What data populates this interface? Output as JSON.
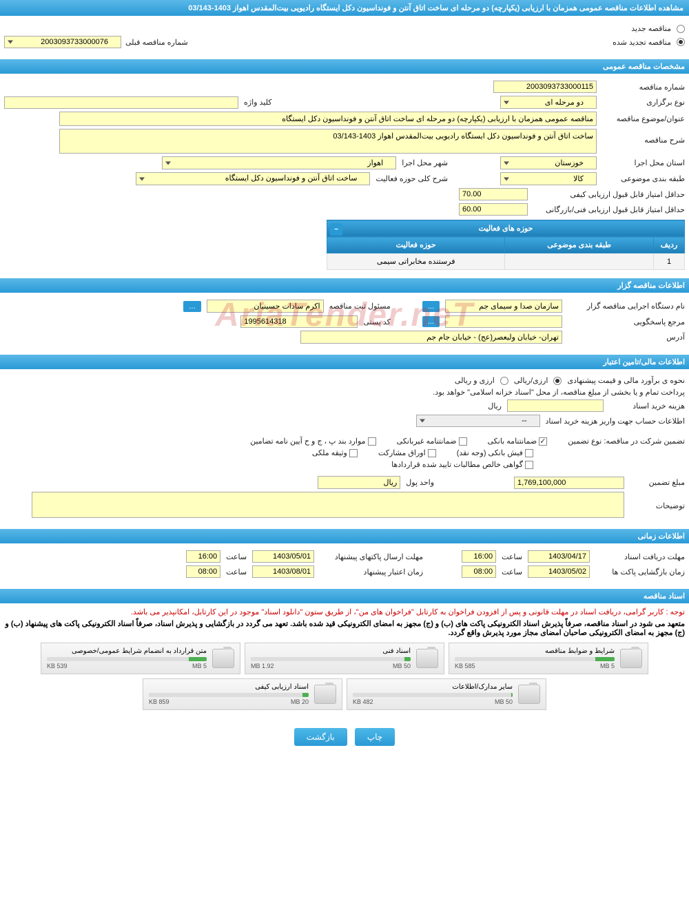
{
  "title": "مشاهده اطلاعات مناقصه عمومی همزمان با ارزیابی (یکپارچه) دو مرحله ای ساخت اتاق آنتن و فونداسیون دکل ایستگاه رادیویی بیت‌المقدس اهواز 1403-03/143",
  "tender_type": {
    "new_label": "مناقصه جدید",
    "renewed_label": "مناقصه تجدید شده",
    "selected": "renewed",
    "prev_number_label": "شماره مناقصه قبلی",
    "prev_number_value": "2003093733000076"
  },
  "sections": {
    "general": "مشخصات مناقصه عمومی",
    "organizer": "اطلاعات مناقصه گزار",
    "financial": "اطلاعات مالی/تامین اعتبار",
    "timing": "اطلاعات زمانی",
    "documents": "اسناد مناقصه"
  },
  "general": {
    "tender_number_label": "شماره مناقصه",
    "tender_number_value": "2003093733000115",
    "type_label": "نوع برگزاری",
    "type_value": "دو مرحله ای",
    "keyword_label": "کلید واژه",
    "keyword_value": "",
    "subject_label": "عنوان/موضوع مناقصه",
    "subject_value": "مناقصه عمومی همزمان با ارزیابی (یکپارچه) دو مرحله ای ساخت اتاق آنتن و فونداسیون دکل ایستگاه",
    "desc_label": "شرح مناقصه",
    "desc_value": "ساخت اتاق آنتن و فونداسیون دکل ایستگاه رادیویی بیت‌المقدس اهواز 1403-03/143",
    "province_label": "استان محل اجرا",
    "province_value": "خوزستان",
    "city_label": "شهر محل اجرا",
    "city_value": "اهواز",
    "category_label": "طبقه بندی موضوعی",
    "category_value": "کالا",
    "activity_scope_label": "شرح کلی حوزه فعالیت",
    "activity_scope_value": "ساخت اتاق آنتن و فونداسیون دکل ایستگاه",
    "min_quality_label": "حداقل امتیاز قابل قبول ارزیابی کیفی",
    "min_quality_value": "70.00",
    "min_tech_label": "حداقل امتیاز قابل قبول ارزیابی فنی/بازرگانی",
    "min_tech_value": "60.00",
    "activity_table_title": "حوزه های فعالیت",
    "activity_table_cols": [
      "ردیف",
      "طبقه بندی موضوعی",
      "حوزه فعالیت"
    ],
    "activity_table_row": [
      "1",
      "",
      "فرستنده مخابراتی سیمی"
    ]
  },
  "organizer": {
    "exec_name_label": "نام دستگاه اجرایی مناقصه گزار",
    "exec_name_value": "سازمان صدا و سیمای جم",
    "reg_official_label": "مسئول ثبت مناقصه",
    "reg_official_value": "اکرم سادات حسینیان",
    "response_ref_label": "مرجع پاسخگویی",
    "response_ref_value": "",
    "postal_label": "کد پستی",
    "postal_value": "1995614318",
    "address_label": "آدرس",
    "address_value": "تهران- خیابان ولیعصر(عج) - خیابان جام جم"
  },
  "financial": {
    "estimate_label": "نحوه ی برآورد مالی و قیمت پیشنهادی",
    "opt_rial": "ارزی/ریالی",
    "opt_foreign": "ارزی و ریالی",
    "treasury_note": "پرداخت تمام و یا بخشی از مبلغ مناقصه، از محل \"اسناد خزانه اسلامی\" خواهد بود.",
    "doc_cost_label": "هزینه خرید اسناد",
    "doc_cost_value": "",
    "doc_cost_unit": "ریال",
    "account_label": "اطلاعات حساب جهت واریز هزینه خرید اسناد",
    "account_value": "--",
    "guarantee_intro": "تضمین شرکت در مناقصه: نوع تضمین",
    "cb_bank_guarantee": "ضمانتنامه بانکی",
    "cb_nonbank_guarantee": "ضمانتنامه غیربانکی",
    "cb_regulation": "موارد بند پ ، ج و ح آیین نامه تضامین",
    "cb_bank_receipt": "فیش بانکی (وجه نقد)",
    "cb_participation": "اوراق مشارکت",
    "cb_property": "وثیقه ملکی",
    "cb_net_claims": "گواهی خالص مطالبات تایید شده قراردادها",
    "guarantee_amount_label": "مبلغ تضمین",
    "guarantee_amount_value": "1,769,100,000",
    "currency_label": "واحد پول",
    "currency_value": "ریال",
    "notes_label": "توضیحات",
    "notes_value": ""
  },
  "timing": {
    "doc_deadline_label": "مهلت دریافت اسناد",
    "doc_deadline_date": "1403/04/17",
    "doc_deadline_time_label": "ساعت",
    "doc_deadline_time": "16:00",
    "proposal_deadline_label": "مهلت ارسال پاکتهای پیشنهاد",
    "proposal_deadline_date": "1403/05/01",
    "proposal_deadline_time_label": "ساعت",
    "proposal_deadline_time": "16:00",
    "opening_label": "زمان بازگشایی پاکت ها",
    "opening_date": "1403/05/02",
    "opening_time_label": "ساعت",
    "opening_time": "08:00",
    "validity_label": "زمان اعتبار پیشنهاد",
    "validity_date": "1403/08/01",
    "validity_time_label": "ساعت",
    "validity_time": "08:00"
  },
  "docs": {
    "note1": "توجه : کاربر گرامی، دریافت اسناد در مهلت قانونی و پس از افزودن فراخوان به کارتابل \"فراخوان های من\"، از طریق ستون \"دانلود اسناد\" موجود در این کارتابل، امکانپذیر می باشد.",
    "note2": "متعهد می شود در اسناد مناقصه، صرفاً پذیرش اسناد الکترونیکی پاکت های (ب) و (ج) مجهز به امضای الکترونیکی قید شده باشد. تعهد می گردد در بازگشایی و پذیرش اسناد، صرفاً اسناد الکترونیکی پاکت های پیشنهاد (ب) و (ج) مجهز به امضای الکترونیکی صاحبان امضای مجاز مورد پذیرش واقع گردد.",
    "files": [
      {
        "name": "شرایط و ضوابط مناقصه",
        "size": "585 KB",
        "max": "5 MB",
        "pct": 12
      },
      {
        "name": "اسناد فنی",
        "size": "1.92 MB",
        "max": "50 MB",
        "pct": 4
      },
      {
        "name": "متن قرارداد به انضمام شرایط عمومی/خصوصی",
        "size": "539 KB",
        "max": "5 MB",
        "pct": 11
      },
      {
        "name": "سایر مدارک/اطلاعات",
        "size": "482 KB",
        "max": "50 MB",
        "pct": 1
      },
      {
        "name": "اسناد ارزیابی کیفی",
        "size": "859 KB",
        "max": "20 MB",
        "pct": 4
      }
    ]
  },
  "buttons": {
    "print": "چاپ",
    "back": "بازگشت"
  },
  "watermark": "AriaTender.neT",
  "colors": {
    "header_bg1": "#5ab8e8",
    "header_bg2": "#2a9ad6",
    "yellow": "#ffffc0",
    "red": "#cc0000"
  }
}
